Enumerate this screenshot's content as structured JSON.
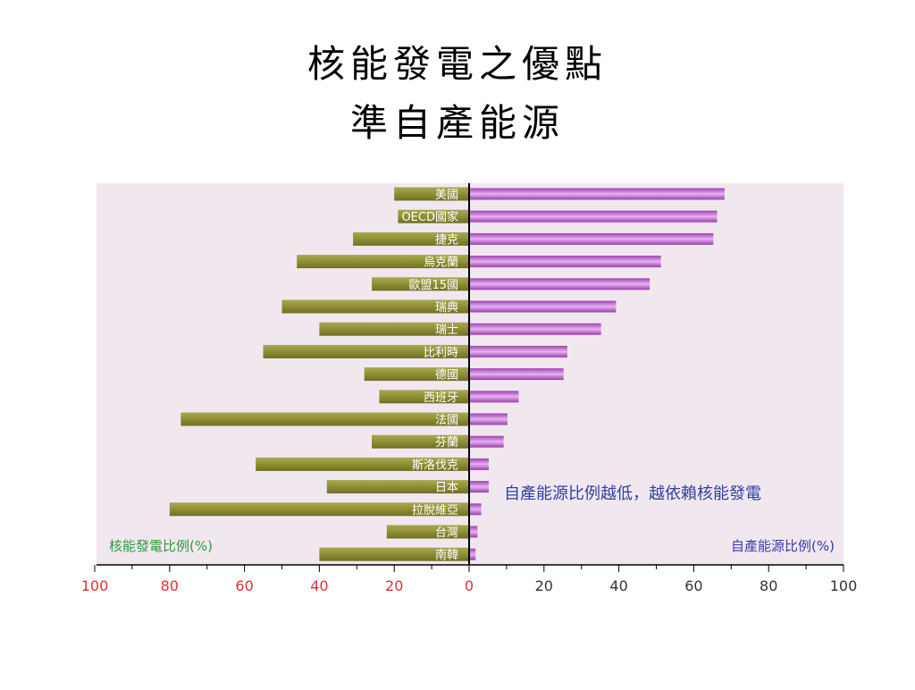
{
  "slide": {
    "title_line1": "核能發電之優點",
    "title_line2": "準自產能源"
  },
  "colors": {
    "plot_bg": "#f1e8ef",
    "nuclear_bar": "#8f8f35",
    "self_bar": "#b85cc7",
    "left_axis_ticks": "#e03030",
    "left_label": "#2e9a3c",
    "right_label": "#3a3aa8",
    "annotation": "#2f3fa5"
  },
  "chart_data": {
    "type": "bar",
    "orientation": "horizontal-diverging",
    "categories": [
      "美國",
      "OECD國家",
      "捷克",
      "烏克蘭",
      "歐盟15國",
      "瑞典",
      "瑞士",
      "比利時",
      "德國",
      "西班牙",
      "法國",
      "芬蘭",
      "斯洛伐克",
      "日本",
      "拉脫維亞",
      "台灣",
      "南韓"
    ],
    "series": [
      {
        "name": "核能發電比例(%)",
        "side": "left",
        "values": [
          20,
          19,
          31,
          46,
          26,
          50,
          40,
          55,
          28,
          24,
          77,
          26,
          57,
          38,
          80,
          22,
          40
        ]
      },
      {
        "name": "自產能源比例(%)",
        "side": "right",
        "values": [
          68,
          66,
          65,
          51,
          48,
          39,
          35,
          26,
          25,
          13,
          10,
          9,
          5,
          5,
          3,
          2,
          1.5
        ]
      }
    ],
    "left_ticks": [
      "100",
      "80",
      "60",
      "40",
      "20",
      "0"
    ],
    "right_ticks": [
      "20",
      "40",
      "60",
      "80",
      "100"
    ],
    "xlim_left": [
      100,
      0
    ],
    "xlim_right": [
      0,
      100
    ],
    "annotation": "自產能源比例越低，越依賴核能發電",
    "grid": false
  }
}
